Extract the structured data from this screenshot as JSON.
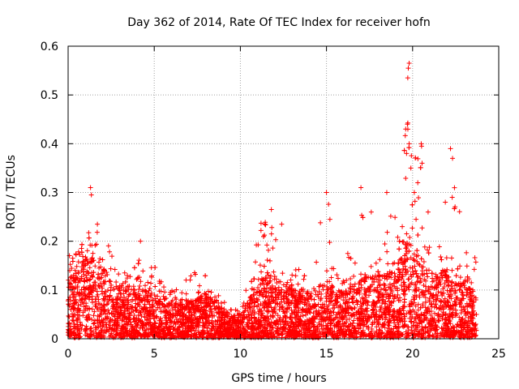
{
  "chart_data": {
    "type": "scatter",
    "title": "Day 362 of 2014, Rate Of TEC Index for receiver hofn",
    "xlabel": "GPS time / hours",
    "ylabel": "ROTI / TECUs",
    "xlim": [
      0,
      25
    ],
    "ylim": [
      0,
      0.6
    ],
    "xticks": [
      0,
      5,
      10,
      15,
      20,
      25
    ],
    "yticks": [
      0,
      0.1,
      0.2,
      0.3,
      0.4,
      0.5,
      0.6
    ],
    "xtick_labels": [
      "0",
      "5",
      "10",
      "15",
      "20",
      "25"
    ],
    "ytick_labels": [
      "0",
      "0.1",
      "0.2",
      "0.3",
      "0.4",
      "0.5",
      "0.6"
    ],
    "grid": true,
    "marker": "+",
    "color": "#ff0000",
    "series": [
      {
        "name": "ROTI",
        "envelope": [
          {
            "x": 0.0,
            "typical_max": 0.12,
            "peak": 0.17
          },
          {
            "x": 0.5,
            "typical_max": 0.13,
            "peak": 0.2
          },
          {
            "x": 1.0,
            "typical_max": 0.16,
            "peak": 0.23
          },
          {
            "x": 1.3,
            "typical_max": 0.17,
            "peak": 0.31
          },
          {
            "x": 1.7,
            "typical_max": 0.16,
            "peak": 0.24
          },
          {
            "x": 2.5,
            "typical_max": 0.12,
            "peak": 0.18
          },
          {
            "x": 3.5,
            "typical_max": 0.1,
            "peak": 0.14
          },
          {
            "x": 4.5,
            "typical_max": 0.1,
            "peak": 0.2
          },
          {
            "x": 5.5,
            "typical_max": 0.08,
            "peak": 0.11
          },
          {
            "x": 6.5,
            "typical_max": 0.07,
            "peak": 0.1
          },
          {
            "x": 7.0,
            "typical_max": 0.08,
            "peak": 0.14
          },
          {
            "x": 8.0,
            "typical_max": 0.09,
            "peak": 0.13
          },
          {
            "x": 9.0,
            "typical_max": 0.06,
            "peak": 0.08
          },
          {
            "x": 9.8,
            "typical_max": 0.04,
            "peak": 0.06
          },
          {
            "x": 10.5,
            "typical_max": 0.08,
            "peak": 0.14
          },
          {
            "x": 11.0,
            "typical_max": 0.12,
            "peak": 0.24
          },
          {
            "x": 11.8,
            "typical_max": 0.13,
            "peak": 0.27
          },
          {
            "x": 13.0,
            "typical_max": 0.1,
            "peak": 0.15
          },
          {
            "x": 14.0,
            "typical_max": 0.09,
            "peak": 0.14
          },
          {
            "x": 15.0,
            "typical_max": 0.12,
            "peak": 0.3
          },
          {
            "x": 16.0,
            "typical_max": 0.1,
            "peak": 0.15
          },
          {
            "x": 17.0,
            "typical_max": 0.12,
            "peak": 0.31
          },
          {
            "x": 18.0,
            "typical_max": 0.13,
            "peak": 0.2
          },
          {
            "x": 19.0,
            "typical_max": 0.14,
            "peak": 0.3
          },
          {
            "x": 19.7,
            "typical_max": 0.2,
            "peak": 0.57
          },
          {
            "x": 20.2,
            "typical_max": 0.18,
            "peak": 0.36
          },
          {
            "x": 20.6,
            "typical_max": 0.16,
            "peak": 0.41
          },
          {
            "x": 21.5,
            "typical_max": 0.13,
            "peak": 0.2
          },
          {
            "x": 22.0,
            "typical_max": 0.14,
            "peak": 0.28
          },
          {
            "x": 22.3,
            "typical_max": 0.12,
            "peak": 0.39
          },
          {
            "x": 23.0,
            "typical_max": 0.11,
            "peak": 0.18
          },
          {
            "x": 23.7,
            "typical_max": 0.1,
            "peak": 0.18
          }
        ],
        "notable_points": [
          {
            "x": 19.8,
            "y": 0.565
          },
          {
            "x": 19.75,
            "y": 0.555
          },
          {
            "x": 19.72,
            "y": 0.535
          },
          {
            "x": 19.6,
            "y": 0.43
          },
          {
            "x": 19.7,
            "y": 0.44
          },
          {
            "x": 20.5,
            "y": 0.4
          },
          {
            "x": 20.52,
            "y": 0.395
          },
          {
            "x": 22.2,
            "y": 0.39
          },
          {
            "x": 19.65,
            "y": 0.38
          },
          {
            "x": 19.8,
            "y": 0.4
          },
          {
            "x": 19.9,
            "y": 0.35
          },
          {
            "x": 20.55,
            "y": 0.36
          },
          {
            "x": 17.0,
            "y": 0.31
          },
          {
            "x": 15.0,
            "y": 0.3
          },
          {
            "x": 1.3,
            "y": 0.31
          },
          {
            "x": 1.35,
            "y": 0.295
          },
          {
            "x": 11.8,
            "y": 0.265
          },
          {
            "x": 11.2,
            "y": 0.237
          },
          {
            "x": 18.5,
            "y": 0.3
          },
          {
            "x": 22.3,
            "y": 0.29
          },
          {
            "x": 21.9,
            "y": 0.28
          },
          {
            "x": 20.1,
            "y": 0.3
          },
          {
            "x": 20.3,
            "y": 0.32
          },
          {
            "x": 12.4,
            "y": 0.235
          },
          {
            "x": 1.7,
            "y": 0.235
          },
          {
            "x": 4.2,
            "y": 0.2
          },
          {
            "x": 17.6,
            "y": 0.26
          },
          {
            "x": 15.2,
            "y": 0.245
          },
          {
            "x": 19.4,
            "y": 0.23
          },
          {
            "x": 20.9,
            "y": 0.26
          }
        ]
      }
    ]
  }
}
